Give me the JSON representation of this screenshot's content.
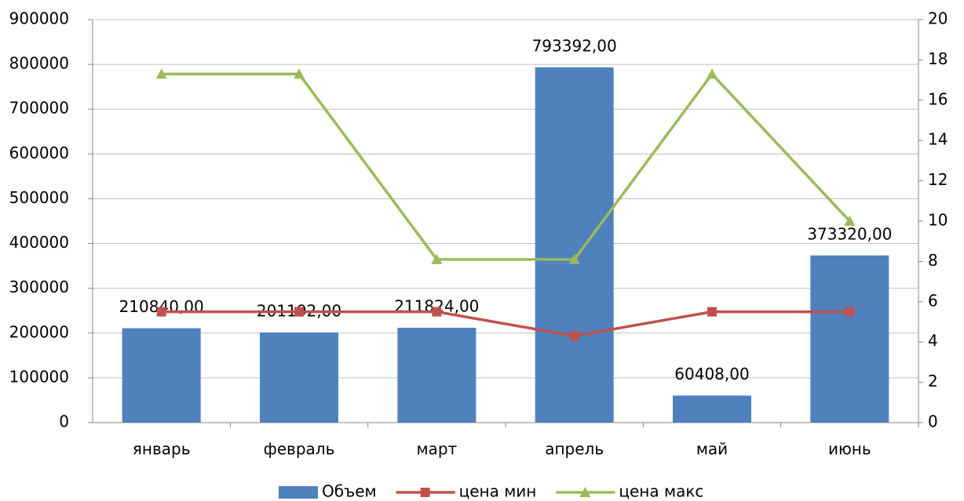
{
  "chart_data": {
    "type": "bar",
    "categories": [
      "январь",
      "февраль",
      "март",
      "апрель",
      "май",
      "июнь"
    ],
    "series": [
      {
        "name": "Объем",
        "type": "bar",
        "color": "#4f81bd",
        "axis": "y",
        "values": [
          210840,
          201192,
          211824,
          793392,
          60408,
          373320
        ],
        "value_labels": [
          "210840,00",
          "201192,00",
          "211824,00",
          "793392,00",
          "60408,00",
          "373320,00"
        ]
      },
      {
        "name": "цена мин",
        "type": "line",
        "color": "#c0504d",
        "axis": "y2",
        "marker": "square",
        "values": [
          5.5,
          5.5,
          5.5,
          4.3,
          5.5,
          5.5
        ]
      },
      {
        "name": "цена макс",
        "type": "line",
        "color": "#9bbb59",
        "axis": "y2",
        "marker": "triangle",
        "values": [
          17.3,
          17.3,
          8.1,
          8.1,
          17.3,
          10
        ]
      }
    ],
    "ylim": [
      0,
      900000
    ],
    "yticks": [
      0,
      100000,
      200000,
      300000,
      400000,
      500000,
      600000,
      700000,
      800000,
      900000
    ],
    "y2lim": [
      0,
      20
    ],
    "y2ticks": [
      0,
      2,
      4,
      6,
      8,
      10,
      12,
      14,
      16,
      18,
      20
    ],
    "grid": true,
    "legend": "bottom"
  }
}
